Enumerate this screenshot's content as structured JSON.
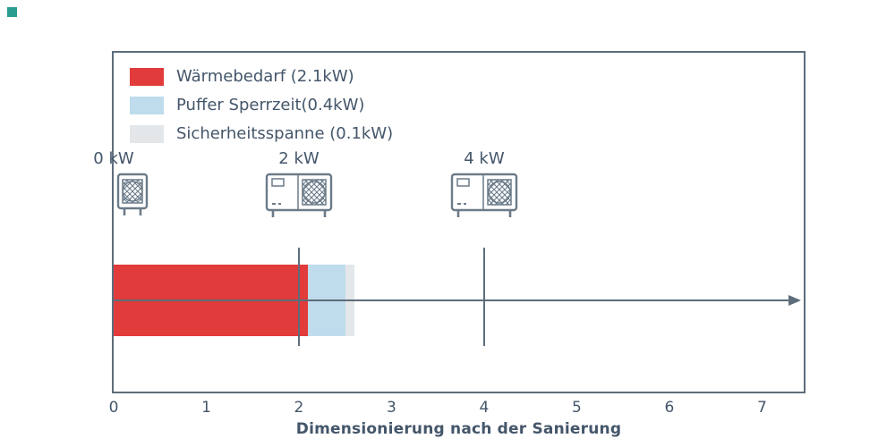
{
  "corner_marker": {
    "color": "#2a9d8f"
  },
  "chart_data": {
    "type": "bar",
    "orientation": "horizontal",
    "title": "Dimensionierung nach der Sanierung",
    "xlabel": "Dimensionierung nach der Sanierung",
    "xlim": [
      0,
      7.45
    ],
    "xticks": [
      "0",
      "1",
      "2",
      "3",
      "4",
      "5",
      "6",
      "7"
    ],
    "grid": false,
    "legend_position": "upper left",
    "legend": [
      {
        "label": "Wärmebedarf (2.1kW)",
        "color": "#e23b3c"
      },
      {
        "label": "Puffer Sperrzeit(0.4kW)",
        "color": "#bfdcec"
      },
      {
        "label": "Sicherheitsspanne (0.1kW)",
        "color": "#e3e7ea"
      }
    ],
    "segments": [
      {
        "name": "waermebedarf",
        "value": 2.1,
        "color": "#e23b3c"
      },
      {
        "name": "puffer-sperrzeit",
        "value": 0.4,
        "color": "#bfdcec"
      },
      {
        "name": "sicherheitsspanne",
        "value": 0.1,
        "color": "#e3e7ea"
      }
    ],
    "markers": [
      {
        "label": "0 kW",
        "x": 0,
        "icon": "heat-pump-single-fan-icon",
        "show_line": false,
        "icon_align": "left"
      },
      {
        "label": "2 kW",
        "x": 2,
        "icon": "heat-pump-double-fan-icon",
        "show_line": true,
        "icon_align": "center"
      },
      {
        "label": "4 kW",
        "x": 4,
        "icon": "heat-pump-double-fan-icon",
        "show_line": true,
        "icon_align": "center"
      }
    ],
    "colors": {
      "axis": "#5d6d7b",
      "text": "#44566a",
      "icon_stroke": "#6b7b89"
    }
  }
}
